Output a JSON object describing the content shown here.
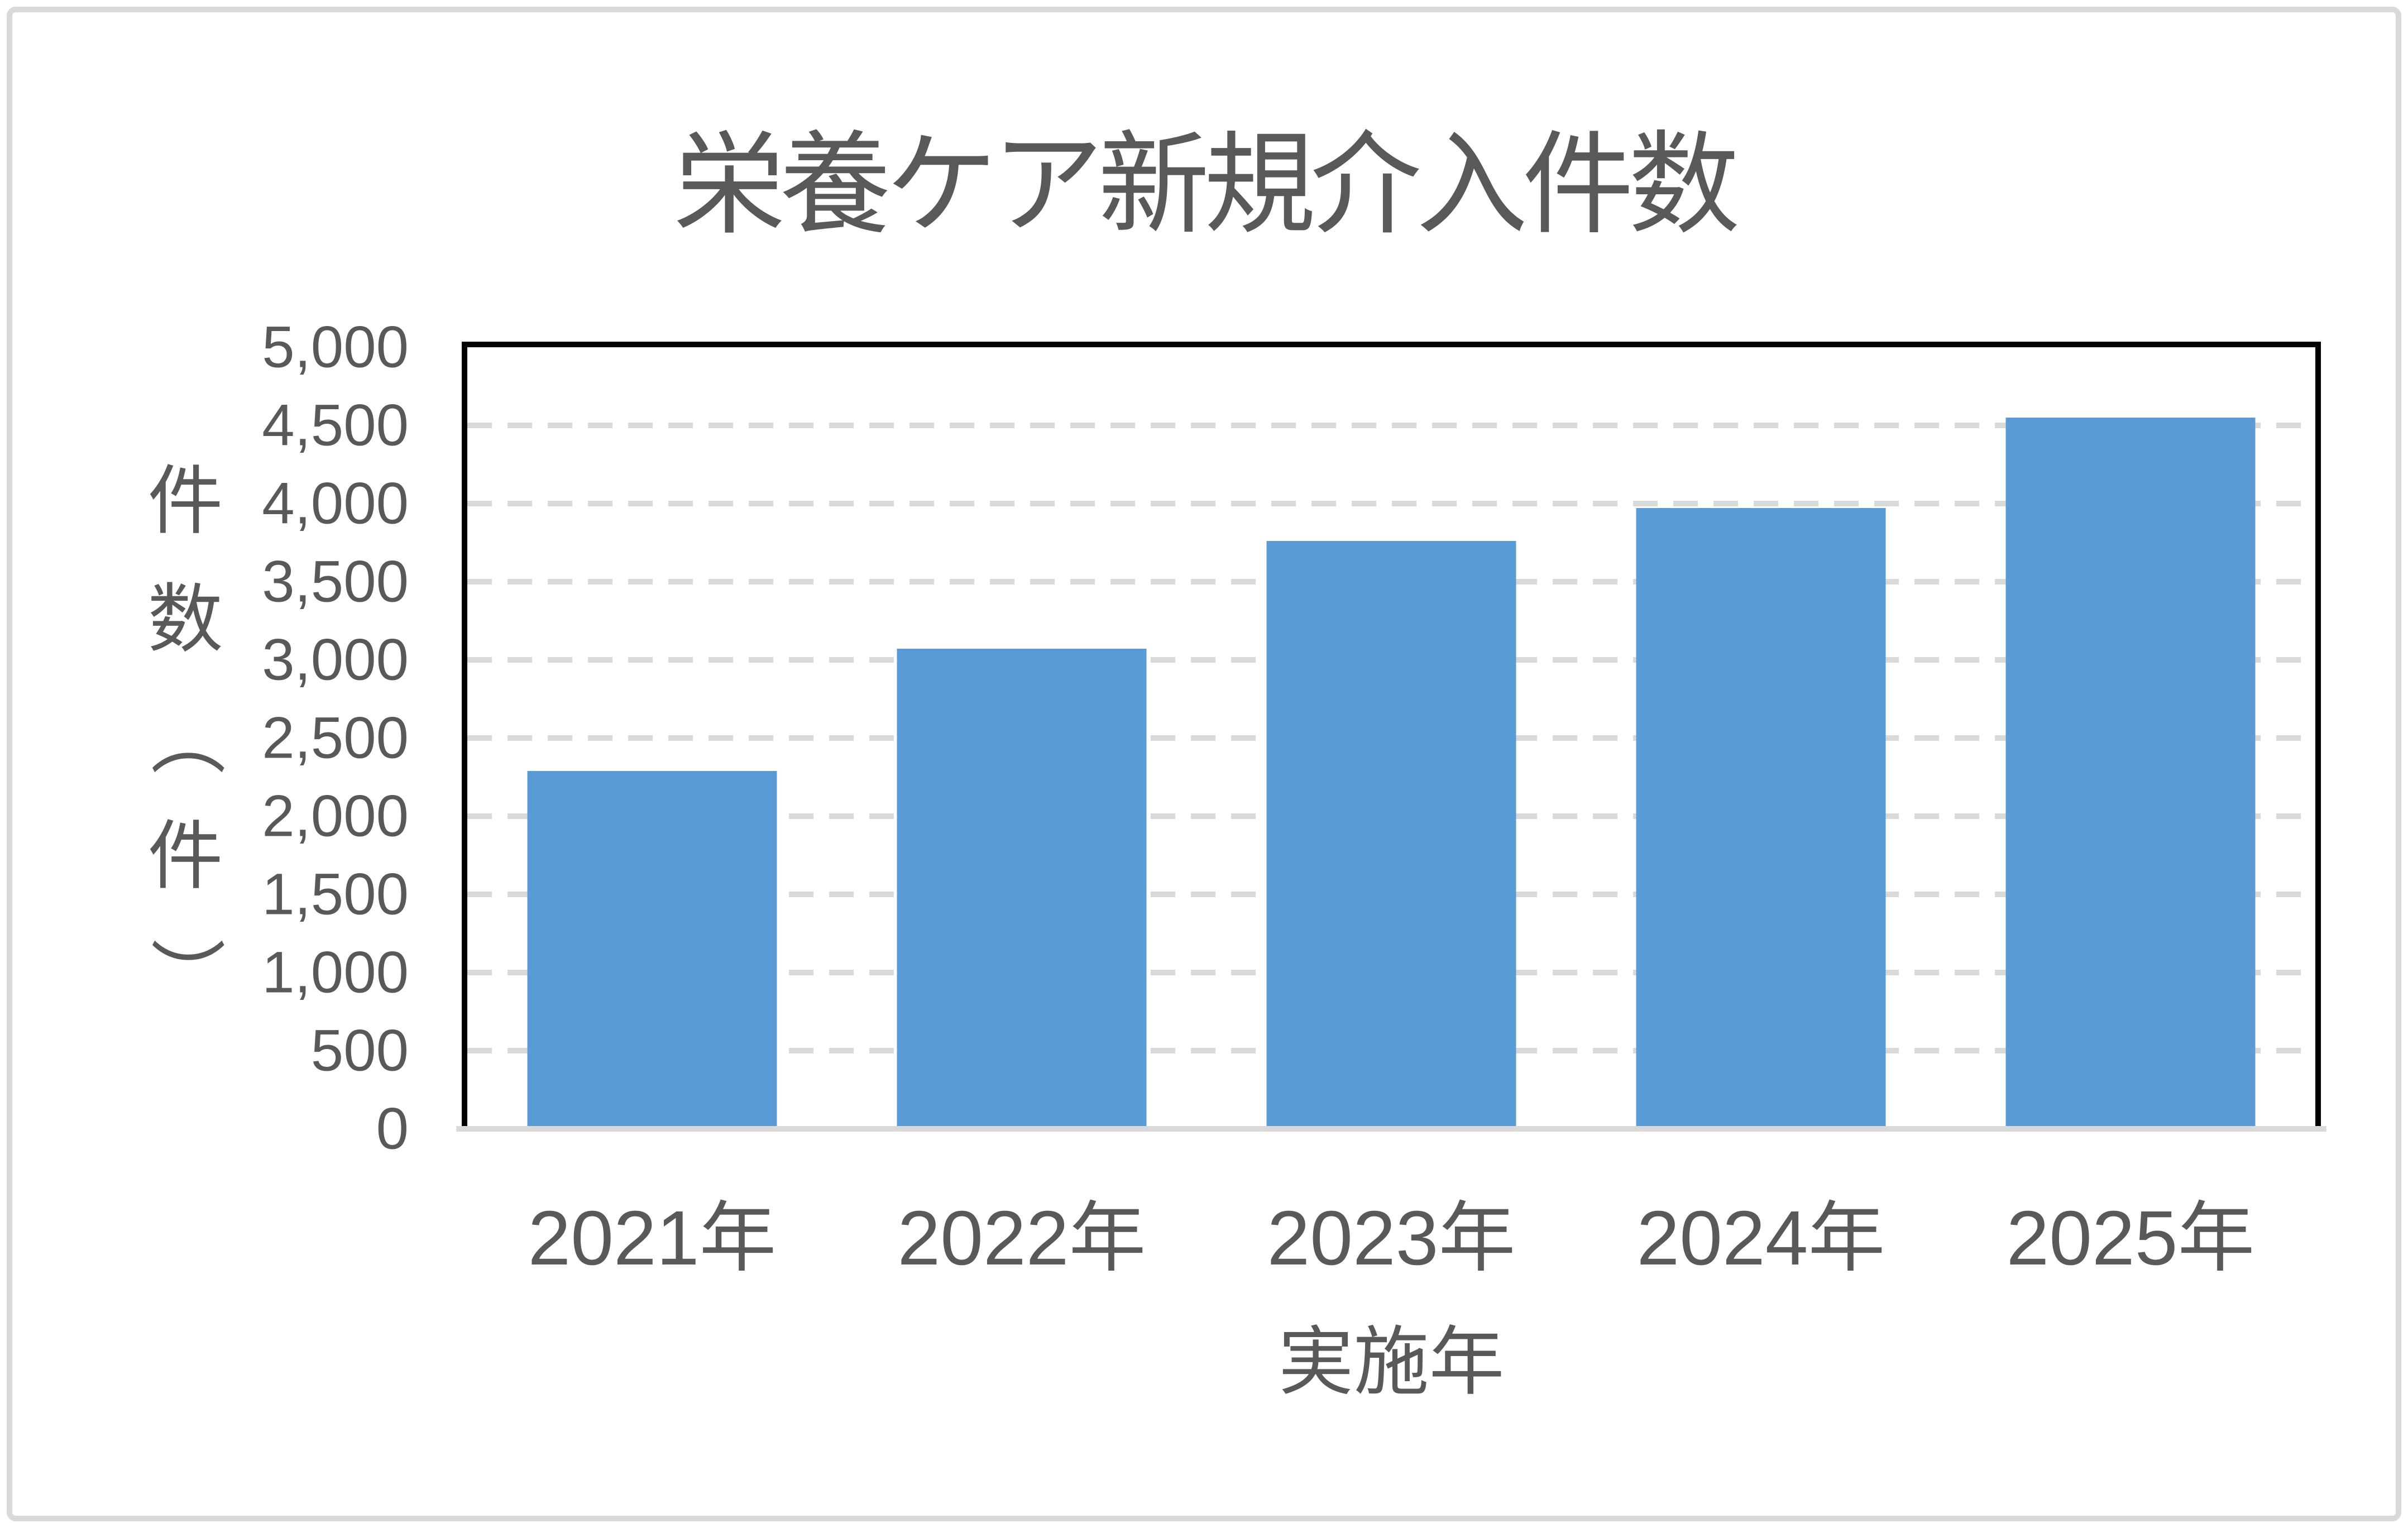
{
  "title": "栄養ケア新規介入件数",
  "y_axis": {
    "label": "件数（件）",
    "ticks": [
      "5,000",
      "4,500",
      "4,000",
      "3,500",
      "3,000",
      "2,500",
      "2,000",
      "1,500",
      "1,000",
      "500",
      "0"
    ]
  },
  "x_axis": {
    "label": "実施年",
    "categories": [
      "2021年",
      "2022年",
      "2023年",
      "2024年",
      "2025年"
    ]
  },
  "chart_data": {
    "type": "bar",
    "title": "栄養ケア新規介入件数",
    "categories": [
      "2021年",
      "2022年",
      "2023年",
      "2024年",
      "2025年"
    ],
    "values": [
      2290,
      3070,
      3760,
      3970,
      4550
    ],
    "xlabel": "実施年",
    "ylabel": "件数（件）",
    "ylim": [
      0,
      5000
    ],
    "ytick_step": 500,
    "grid": "horizontal-dashed",
    "legend": "none",
    "bar_color": "#5B9BD5"
  },
  "colors": {
    "bar": "#5B9BD5",
    "grid": "#D9D9D9",
    "axis_line": "#D9D9D9",
    "plot_border": "#000000",
    "text": "#595959",
    "figure_border": "#D9D9D9",
    "background": "#FFFFFF"
  }
}
